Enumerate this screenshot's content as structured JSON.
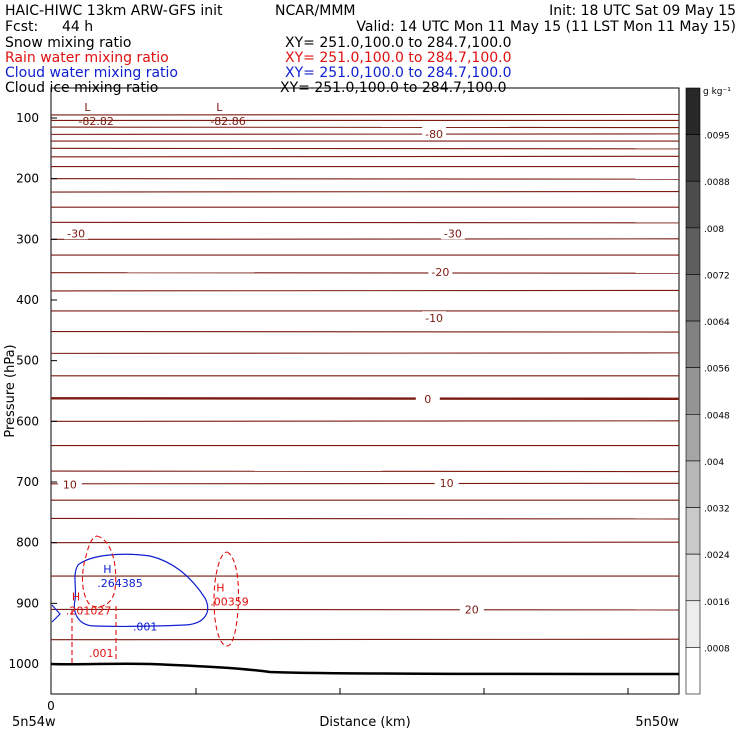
{
  "header": {
    "model_line": "HAIC-HIWC 13km ARW-GFS init",
    "org": "NCAR/MMM",
    "init": "Init: 18 UTC Sat 09 May 15",
    "fcst_label": "Fcst:",
    "fcst_value": "44 h",
    "valid": "Valid: 14 UTC Mon 11 May 15 (11 LST Mon 11 May 15)",
    "fields": [
      {
        "name": "Snow mixing ratio",
        "xy": "XY= 251.0,100.0 to 284.7,100.0",
        "color": "#000000"
      },
      {
        "name": "Rain water mixing ratio",
        "xy": "XY= 251.0,100.0 to 284.7,100.0",
        "color": "#e01010"
      },
      {
        "name": "Cloud water mixing ratio",
        "xy": "XY= 251.0,100.0 to 284.7,100.0",
        "color": "#1020d0"
      },
      {
        "name": "Cloud ice mixing ratio",
        "xy": "XY= 251.0,100.0 to 284.7,100.0",
        "color": "#000000"
      }
    ]
  },
  "chart_data": {
    "type": "cross-section",
    "xlabel": "Distance (km)",
    "ylabel": "Pressure (hPa)",
    "x_ticks": [
      "0"
    ],
    "x_endpoints": {
      "left": "5n54w",
      "right": "5n50w"
    },
    "ylim": [
      1050,
      50
    ],
    "y_ticks": [
      100,
      200,
      300,
      400,
      500,
      600,
      700,
      800,
      900,
      1000
    ],
    "colorbar": {
      "unit": "g kg⁻¹",
      "labels": [
        ".0095",
        ".0088",
        ".008",
        ".0072",
        ".0064",
        ".0056",
        ".0048",
        ".004",
        ".0032",
        ".0024",
        ".0016",
        ".0008"
      ],
      "min": 0,
      "max": 0.0104,
      "step": 0.0008
    },
    "temperature_labels": [
      {
        "text": "-80",
        "x": 0.61,
        "p": 126
      },
      {
        "text": "-30",
        "x": 0.04,
        "p": 290
      },
      {
        "text": "-30",
        "x": 0.64,
        "p": 290
      },
      {
        "text": "-20",
        "x": 0.62,
        "p": 354
      },
      {
        "text": "-10",
        "x": 0.61,
        "p": 430
      },
      {
        "text": "0",
        "x": 0.6,
        "p": 563
      },
      {
        "text": "10",
        "x": 0.03,
        "p": 704
      },
      {
        "text": "10",
        "x": 0.63,
        "p": 702
      },
      {
        "text": "20",
        "x": 0.67,
        "p": 910
      }
    ],
    "pressure_lines": [
      {
        "p": 95
      },
      {
        "p": 104
      },
      {
        "p": 115
      },
      {
        "p": 127
      },
      {
        "p": 138
      },
      {
        "p": 150
      },
      {
        "p": 164
      },
      {
        "p": 180
      },
      {
        "p": 200
      },
      {
        "p": 222
      },
      {
        "p": 247
      },
      {
        "p": 272
      },
      {
        "p": 300
      },
      {
        "p": 326
      },
      {
        "p": 355
      },
      {
        "p": 385
      },
      {
        "p": 418
      },
      {
        "p": 452
      },
      {
        "p": 488
      },
      {
        "p": 525
      },
      {
        "p": 562,
        "bold": true
      },
      {
        "p": 600
      },
      {
        "p": 640
      },
      {
        "p": 682
      },
      {
        "p": 703
      },
      {
        "p": 730
      },
      {
        "p": 760
      },
      {
        "p": 800
      },
      {
        "p": 855
      },
      {
        "p": 910
      },
      {
        "p": 960
      }
    ],
    "extrema": [
      {
        "kind": "L",
        "value": "-82.82",
        "x": 0.05,
        "p": 98
      },
      {
        "kind": "L",
        "value": "-82.86",
        "x": 0.26,
        "p": 98
      },
      {
        "kind": "H",
        "value": ".264385",
        "x": 0.08,
        "p": 860,
        "color": "#1020d0"
      },
      {
        "kind": "H",
        "value": ".201027",
        "x": 0.03,
        "p": 905,
        "color": "#e01010"
      },
      {
        "kind": "H",
        "value": ".00359",
        "x": 0.26,
        "p": 890,
        "color": "#e01010"
      }
    ],
    "contour_labels": [
      {
        "text": ".001",
        "x": 0.15,
        "p": 938,
        "color": "#1020d0"
      },
      {
        "text": ".001",
        "x": 0.08,
        "p": 982,
        "color": "#e01010"
      }
    ]
  }
}
